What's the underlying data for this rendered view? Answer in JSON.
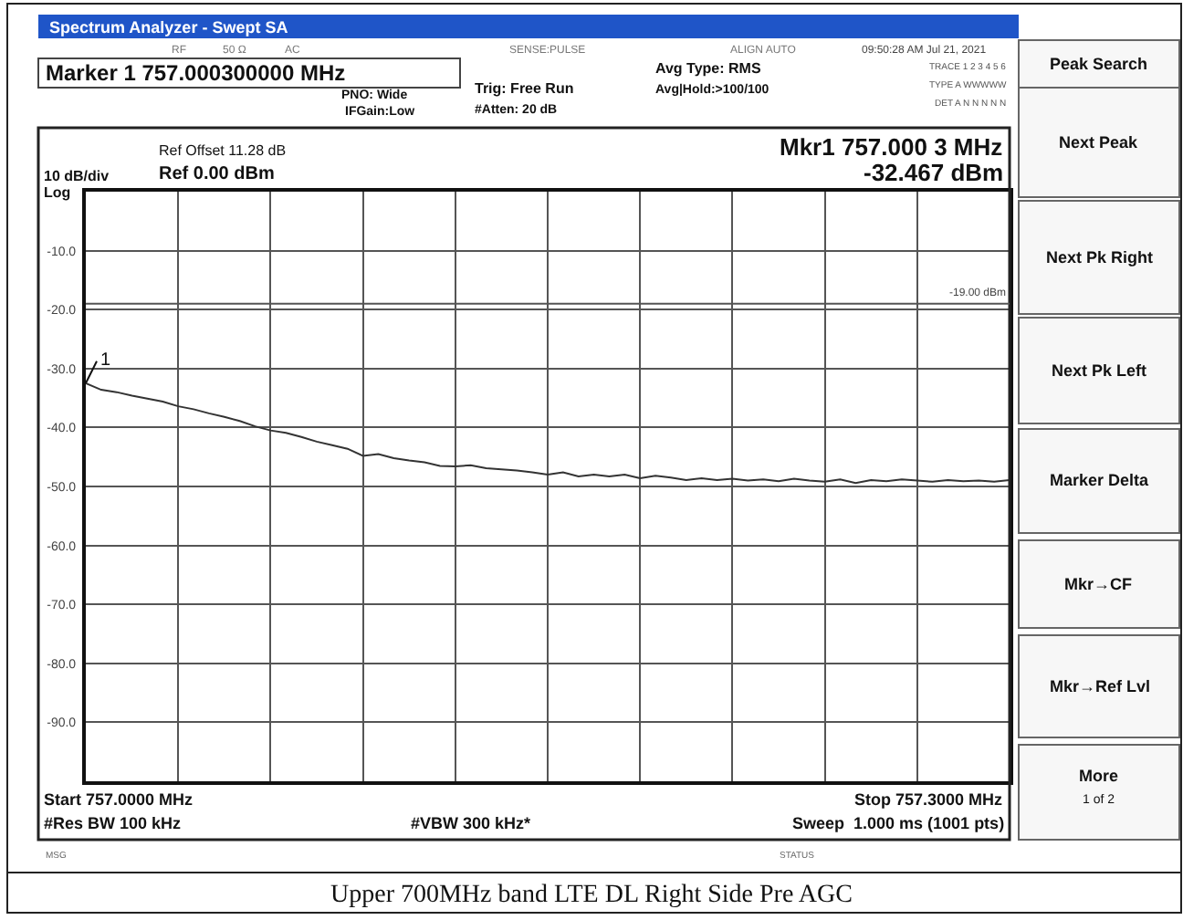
{
  "chart_data": {
    "type": "line",
    "title": "Spectrum Analyzer - Swept SA",
    "categories": [
      null,
      null,
      null,
      null,
      null,
      null,
      null,
      null,
      null,
      null,
      null,
      null,
      null,
      null,
      null,
      null,
      null,
      null,
      null,
      null,
      null,
      null,
      null,
      null,
      null,
      null,
      null,
      null,
      null,
      null,
      null,
      null,
      null,
      null,
      null,
      null,
      null,
      null,
      null,
      null,
      null,
      null,
      null,
      null,
      null,
      null,
      null,
      null,
      null,
      null,
      null,
      null,
      null,
      null,
      null,
      null,
      null,
      null,
      null,
      null,
      null
    ],
    "series": [
      {
        "color": "#333333",
        "values": [
          -32.5,
          -33.6,
          -34.0,
          -34.6,
          -35.1,
          -35.6,
          -36.4,
          -36.9,
          -37.6,
          -38.2,
          -38.9,
          -39.8,
          -40.5,
          -40.9,
          -41.6,
          -42.4,
          -43.0,
          -43.6,
          -44.8,
          -44.5,
          -45.2,
          -45.6,
          -45.9,
          -46.5,
          -46.6,
          -46.4,
          -46.9,
          -47.1,
          -47.3,
          -47.6,
          -48.0,
          -47.6,
          -48.3,
          -48.0,
          -48.3,
          -48.0,
          -48.6,
          -48.2,
          -48.5,
          -48.9,
          -48.6,
          -48.9,
          -48.7,
          -49.0,
          -48.8,
          -49.1,
          -48.7,
          -49.0,
          -49.2,
          -48.8,
          -49.4,
          -48.9,
          -49.1,
          -48.8,
          -49.0,
          -49.2,
          -48.9,
          -49.1,
          -49.0,
          -49.2,
          -48.9
        ]
      }
    ],
    "ylim": [
      -100,
      0
    ],
    "yticks": [
      {
        "value": 0,
        "label": null
      },
      {
        "value": -10,
        "label": "-10.0"
      },
      {
        "value": -20,
        "label": "-20.0"
      },
      {
        "value": -30,
        "label": "-30.0"
      },
      {
        "value": -40,
        "label": "-40.0"
      },
      {
        "value": -50,
        "label": "-50.0"
      },
      {
        "value": -60,
        "label": "-60.0"
      },
      {
        "value": -70,
        "label": "-70.0"
      },
      {
        "value": -80,
        "label": "-80.0"
      },
      {
        "value": -90,
        "label": "-90.0"
      },
      {
        "value": -100,
        "label": null
      }
    ],
    "tick_labels": "y",
    "grid": true,
    "marker": "none",
    "line_style": "solid",
    "ref_lines": [
      {
        "axis": "y",
        "value": -19,
        "label": "-19.00 dBm",
        "color": "#555555"
      }
    ],
    "annotations": [
      "RF",
      "50 Ω",
      "AC",
      "SENSE:PULSE",
      "ALIGN AUTO",
      "09:50:28 AM Jul 21, 2021",
      "Marker 1 757.000300000 MHz",
      "PNO: Wide",
      "IFGain:Low",
      "Trig: Free Run",
      "#Atten: 20 dB",
      "Avg Type: RMS",
      "Avg|Hold:>100/100",
      "TRACE 1 2 3 4 5 6",
      "TYPE A WWWWW",
      "DET A N N N N N",
      "Ref Offset 11.28 dB",
      "Ref 0.00 dBm",
      "10 dB/div",
      "Log",
      "Mkr1 757.000 3 MHz",
      "-32.467 dBm",
      "Start 757.0000 MHz",
      "#Res BW 100 kHz",
      "#VBW 300 kHz*",
      "Stop 757.3000 MHz",
      "Sweep  1.000 ms (1001 pts)",
      "MSG",
      "STATUS",
      "Peak Search",
      "Next Peak",
      "Next Pk Right",
      "Next Pk Left",
      "Marker Delta",
      "Mkr→CF",
      "Mkr→Ref Lvl",
      "More",
      "1 of 2",
      "Upper 700MHz band LTE DL Right Side Pre AGC",
      {
        "text": "1",
        "y": -32.467
      }
    ]
  }
}
